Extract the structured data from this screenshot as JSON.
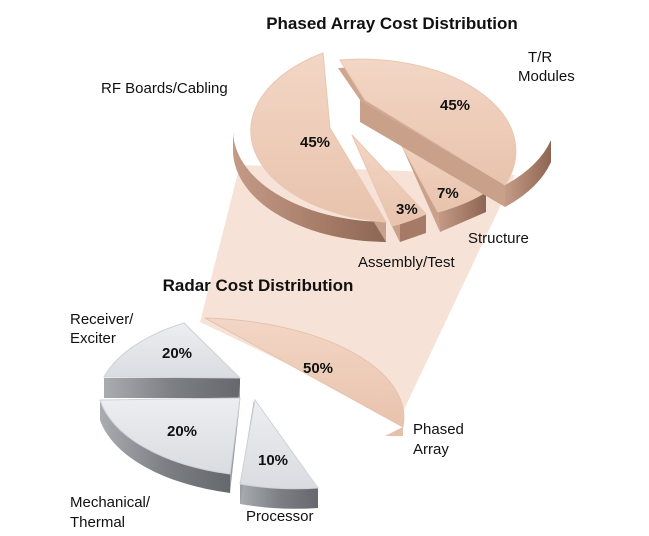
{
  "chart_data": [
    {
      "type": "pie",
      "title": "Phased Array Cost Distribution",
      "slices": [
        {
          "label": "RF Boards/Cabling",
          "value": 45,
          "value_label": "45%"
        },
        {
          "label": "T/R Modules",
          "value": 45,
          "value_label": "45%"
        },
        {
          "label": "Structure",
          "value": 7,
          "value_label": "7%"
        },
        {
          "label": "Assembly/Test",
          "value": 3,
          "value_label": "3%"
        }
      ],
      "colors": {
        "top": "#efcdb9",
        "side": "#b48874",
        "edge": "#caa08a"
      }
    },
    {
      "type": "pie",
      "title": "Radar Cost Distribution",
      "slices": [
        {
          "label": "Phased Array",
          "value": 50,
          "value_label": "50%"
        },
        {
          "label": "Processor",
          "value": 10,
          "value_label": "10%"
        },
        {
          "label": "Mechanical/ Thermal",
          "value": 20,
          "value_label": "20%"
        },
        {
          "label": "Receiver/ Exciter",
          "value": 20,
          "value_label": "20%"
        }
      ],
      "colors": {
        "top": "#e3e6ea",
        "side": "#8e9196",
        "highlight": "#efcdb9"
      }
    }
  ],
  "connector_color": "#f6e2d6"
}
